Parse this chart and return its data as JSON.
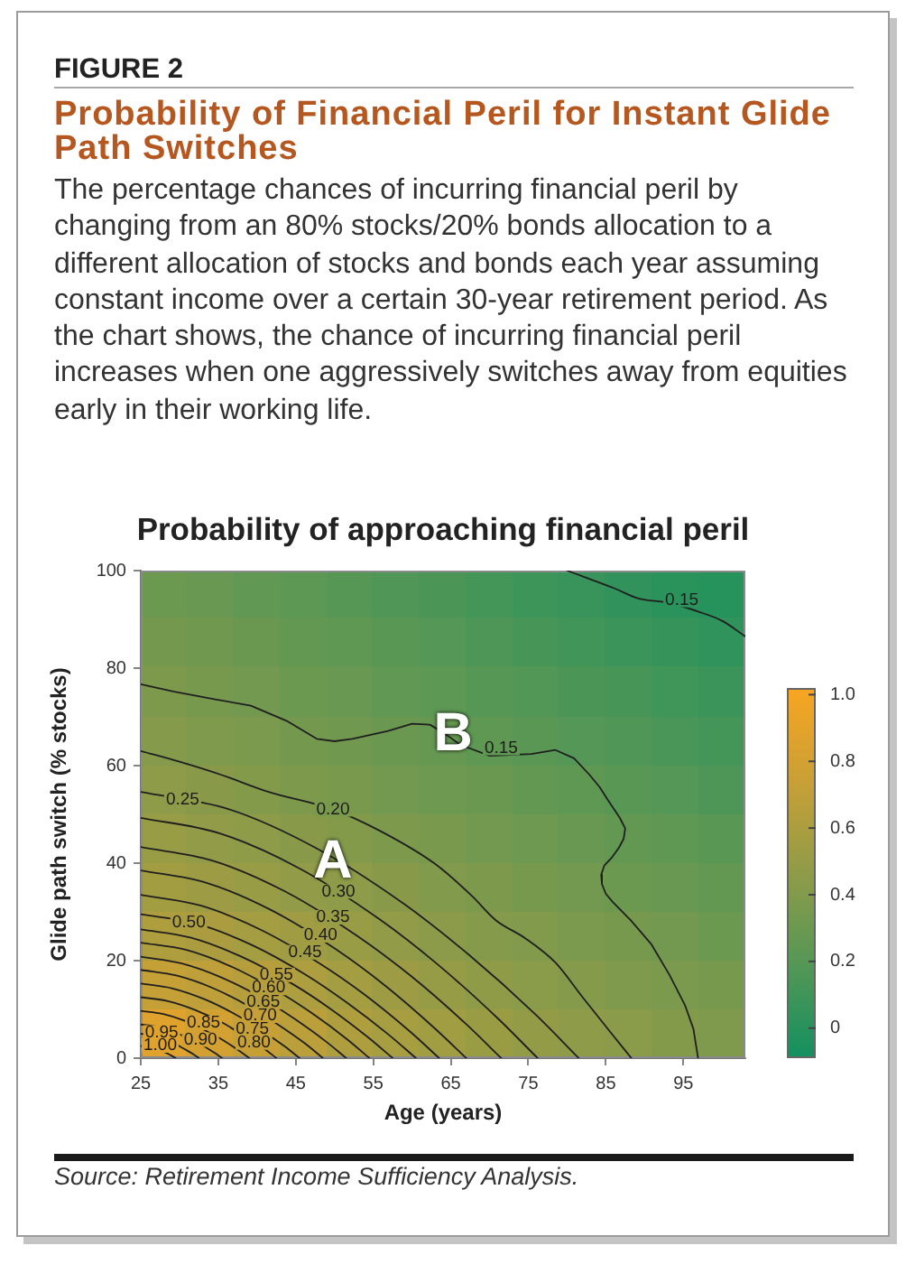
{
  "chart_data": {
    "type": "heatmap",
    "title": "Probability of Financial Peril for Instant Glide Path Switches",
    "subtitle": "The percentage chances of incurring financial peril by changing from an 80% stocks/20% bonds allocation to a different allocation of stocks and bonds each year assuming constant income over a certain 30-year retirement period. As the chart shows, the chance of incurring financial peril increases when one aggressively switches away from equities early in their working life.",
    "xlabel": "Age (years)",
    "ylabel": "Glide path switch (% stocks)",
    "xlim": [
      25,
      103
    ],
    "xticks": [
      25,
      35,
      45,
      55,
      65,
      75,
      85,
      95
    ],
    "ylim": [
      0,
      100
    ],
    "yticks": [
      0,
      20,
      40,
      60,
      80,
      100
    ],
    "clim": [
      -0.09,
      1.02
    ],
    "cticks": [
      0,
      0.2,
      0.4,
      0.6,
      0.8,
      {
        "value": 1,
        "label": "1.0"
      }
    ],
    "cells": [
      [
        0.3,
        0.28,
        0.25,
        0.23,
        0.2,
        0.17,
        0.15,
        0.12,
        0.09,
        0.07,
        0.04,
        0.01,
        -0.01
      ],
      [
        0.34,
        0.32,
        0.29,
        0.26,
        0.24,
        0.21,
        0.19,
        0.16,
        0.13,
        0.11,
        0.08,
        0.06,
        0.03
      ],
      [
        0.38,
        0.35,
        0.33,
        0.3,
        0.28,
        0.25,
        0.23,
        0.2,
        0.18,
        0.15,
        0.13,
        0.1,
        0.08
      ],
      [
        0.42,
        0.39,
        0.37,
        0.34,
        0.32,
        0.29,
        0.27,
        0.24,
        0.22,
        0.19,
        0.17,
        0.14,
        0.12
      ],
      [
        0.46,
        0.43,
        0.41,
        0.38,
        0.36,
        0.33,
        0.31,
        0.29,
        0.26,
        0.24,
        0.21,
        0.19,
        0.16
      ],
      [
        0.51,
        0.48,
        0.46,
        0.43,
        0.41,
        0.38,
        0.36,
        0.33,
        0.31,
        0.28,
        0.26,
        0.24,
        0.21
      ],
      [
        0.56,
        0.53,
        0.51,
        0.48,
        0.46,
        0.43,
        0.4,
        0.38,
        0.35,
        0.33,
        0.3,
        0.28,
        0.26
      ],
      [
        0.62,
        0.6,
        0.57,
        0.54,
        0.51,
        0.48,
        0.45,
        0.42,
        0.4,
        0.37,
        0.35,
        0.33,
        0.3
      ],
      [
        0.72,
        0.69,
        0.65,
        0.61,
        0.57,
        0.53,
        0.5,
        0.47,
        0.44,
        0.42,
        0.39,
        0.37,
        0.35
      ],
      [
        0.87,
        0.8,
        0.73,
        0.67,
        0.62,
        0.58,
        0.55,
        0.52,
        0.49,
        0.46,
        0.44,
        0.41,
        0.39
      ]
    ],
    "series": [
      {
        "type": "line",
        "color": "#1f1f1f",
        "x": [
          80.0,
          86.2,
          89.2,
          93.1,
          96.9,
          100.0,
          103.0
        ],
        "values": [
          100,
          96.3,
          94.3,
          93.4,
          91.6,
          89.7,
          86.5
        ]
      },
      {
        "type": "line",
        "color": "#1f1f1f",
        "x": [
          25,
          29.2,
          34.6,
          39.2,
          43.8,
          47.7,
          50.0,
          52.3,
          56.9,
          60.0,
          62.3,
          64.2,
          66.2,
          70.0,
          75.4,
          78.5,
          80.9,
          82.9,
          84.2,
          85.2,
          86.8,
          87.5,
          87.3,
          86.7,
          85.8,
          84.8,
          84.4,
          84.5,
          85.0,
          85.9,
          88.2,
          90.9,
          93.2,
          95.2,
          96.3,
          96.9
        ],
        "values": [
          76.7,
          75.2,
          73.6,
          72.3,
          69.2,
          65.5,
          65.0,
          65.5,
          67.1,
          68.6,
          68.4,
          66.6,
          64.3,
          62.0,
          62.4,
          63.2,
          61.5,
          58.1,
          55.6,
          53.1,
          49.3,
          47.1,
          45.0,
          43.2,
          41.2,
          39.5,
          37.6,
          35.7,
          33.7,
          32.0,
          28.3,
          23.3,
          17.1,
          10.9,
          6.0,
          0
        ]
      },
      {
        "type": "line",
        "color": "#1f1f1f",
        "x": [
          25,
          30,
          35.4,
          41.5,
          49.8,
          56,
          63,
          67.7,
          70.8,
          74.6,
          78.5,
          82,
          85.5,
          88.3
        ],
        "values": [
          63.0,
          60.8,
          58.1,
          54.6,
          51.0,
          46.5,
          39.8,
          33.3,
          28.3,
          24.6,
          19.6,
          12.5,
          5.5,
          0
        ]
      },
      {
        "type": "line",
        "color": "#1f1f1f",
        "x": [
          25,
          36.3,
          47.6,
          58.9,
          67.4,
          75.9,
          81.5
        ],
        "values": [
          54.6,
          51.1,
          43.1,
          31.7,
          21.1,
          9.0,
          0
        ]
      },
      {
        "type": "line",
        "color": "#1f1f1f",
        "x": [
          25,
          35.2,
          45.5,
          55.7,
          63.4,
          71.1,
          76.2
        ],
        "values": [
          49.3,
          46.1,
          38.9,
          28.6,
          19.1,
          8.1,
          0
        ]
      },
      {
        "type": "line",
        "color": "#1f1f1f",
        "x": [
          25,
          34.3,
          43.6,
          52.9,
          59.9,
          66.9,
          71.5
        ],
        "values": [
          43.3,
          40.5,
          34.2,
          25.1,
          16.8,
          7.1,
          0
        ]
      },
      {
        "type": "line",
        "color": "#1f1f1f",
        "x": [
          25,
          33.4,
          41.8,
          50.2,
          56.5,
          62.8,
          67.0
        ],
        "values": [
          38.5,
          36.0,
          30.4,
          22.3,
          14.9,
          6.3,
          0
        ]
      },
      {
        "type": "line",
        "color": "#1f1f1f",
        "x": [
          25,
          32.7,
          40.4,
          48.1,
          53.9,
          59.7,
          63.5
        ],
        "values": [
          33.5,
          31.3,
          26.4,
          19.4,
          13.0,
          5.5,
          0
        ]
      },
      {
        "type": "line",
        "color": "#1f1f1f",
        "x": [
          25,
          32.1,
          39.2,
          46.3,
          51.6,
          57.0,
          60.5
        ],
        "values": [
          29.5,
          27.6,
          23.3,
          17.1,
          11.4,
          4.8,
          0
        ]
      },
      {
        "type": "line",
        "color": "#1f1f1f",
        "x": [
          25,
          31.5,
          38.0,
          44.5,
          49.4,
          54.3,
          57.5
        ],
        "values": [
          26.4,
          24.7,
          20.8,
          15.3,
          10.2,
          4.3,
          0
        ]
      },
      {
        "type": "line",
        "color": "#1f1f1f",
        "x": [
          25,
          30.9,
          36.8,
          42.7,
          47.1,
          51.6,
          54.5
        ],
        "values": [
          23.7,
          22.2,
          18.7,
          13.7,
          9.2,
          3.9,
          0
        ]
      },
      {
        "type": "line",
        "color": "#1f1f1f",
        "x": [
          25,
          30.3,
          35.6,
          40.9,
          44.9,
          48.9,
          51.5
        ],
        "values": [
          20.8,
          19.4,
          16.4,
          12.1,
          8.0,
          3.4,
          0
        ]
      },
      {
        "type": "line",
        "color": "#1f1f1f",
        "x": [
          25,
          29.7,
          34.4,
          39.1,
          42.6,
          46.2,
          48.5
        ],
        "values": [
          18.1,
          16.9,
          14.3,
          10.5,
          7.0,
          3.0,
          0
        ]
      },
      {
        "type": "line",
        "color": "#1f1f1f",
        "x": [
          25,
          29.1,
          33.2,
          37.3,
          40.4,
          43.5,
          45.5
        ],
        "values": [
          15.3,
          14.3,
          12.1,
          8.9,
          5.9,
          2.5,
          0
        ]
      },
      {
        "type": "line",
        "color": "#1f1f1f",
        "x": [
          25,
          28.5,
          32.0,
          35.5,
          38.1,
          40.8,
          42.5
        ],
        "values": [
          12.5,
          11.7,
          9.9,
          7.3,
          4.8,
          2.1,
          0
        ]
      },
      {
        "type": "line",
        "color": "#1f1f1f",
        "x": [
          25,
          27.8,
          30.6,
          33.4,
          35.5,
          37.6,
          39.0
        ],
        "values": [
          9.7,
          9.1,
          7.7,
          5.6,
          3.8,
          1.6,
          0
        ]
      },
      {
        "type": "line",
        "color": "#1f1f1f",
        "x": [
          25,
          27.1,
          29.2,
          31.3,
          32.9,
          34.5,
          35.5
        ],
        "values": [
          6.9,
          6.5,
          5.4,
          4.0,
          2.7,
          1.1,
          0
        ]
      },
      {
        "type": "line",
        "color": "#1f1f1f",
        "x": [
          25,
          26.5,
          28.0,
          29.5,
          30.6,
          31.8,
          32.5
        ],
        "values": [
          5.0,
          4.7,
          3.9,
          2.9,
          1.9,
          0.8,
          0
        ]
      },
      {
        "type": "line",
        "color": "#1f1f1f",
        "x": [
          25,
          26.8,
          28.4,
          29.5
        ],
        "values": [
          2.5,
          2.0,
          1.0,
          0
        ]
      }
    ],
    "annotations": [
      "FIGURE 2",
      "Probability of approaching financial peril",
      {
        "text": "A",
        "x": 49.8,
        "y": 40.5
      },
      {
        "text": "B",
        "x": 65.3,
        "y": 66.6
      },
      {
        "text": "0.15",
        "x": 94.8,
        "y": 94.0
      },
      {
        "text": "0.15",
        "x": 71.5,
        "y": 63.6
      },
      {
        "text": "0.20",
        "x": 49.8,
        "y": 51.0
      },
      {
        "text": "0.25",
        "x": 30.4,
        "y": 53.1
      },
      {
        "text": "0.30",
        "x": 50.5,
        "y": 34.2
      },
      {
        "text": "0.35",
        "x": 49.8,
        "y": 28.9
      },
      {
        "text": "0.40",
        "x": 48.2,
        "y": 25.2
      },
      {
        "text": "0.45",
        "x": 46.2,
        "y": 21.7
      },
      {
        "text": "0.50",
        "x": 31.2,
        "y": 27.9
      },
      {
        "text": "0.55",
        "x": 42.5,
        "y": 17.1
      },
      {
        "text": "0.60",
        "x": 41.5,
        "y": 14.4
      },
      {
        "text": "0.65",
        "x": 40.8,
        "y": 11.5
      },
      {
        "text": "0.70",
        "x": 40.4,
        "y": 8.7
      },
      {
        "text": "0.75",
        "x": 39.4,
        "y": 6.0
      },
      {
        "text": "0.80",
        "x": 39.6,
        "y": 3.2
      },
      {
        "text": "0.85",
        "x": 33.1,
        "y": 7.2
      },
      {
        "text": "0.90",
        "x": 32.7,
        "y": 3.8
      },
      {
        "text": "0.95",
        "x": 27.7,
        "y": 5.3
      },
      {
        "text": "1.00",
        "x": 27.5,
        "y": 2.6
      },
      "Source: Retirement Income Sufficiency Analysis."
    ]
  }
}
